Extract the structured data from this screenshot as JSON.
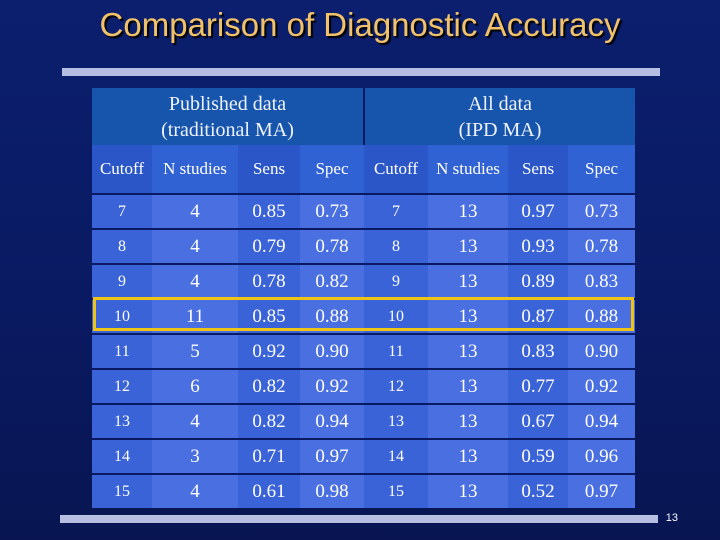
{
  "title": "Comparison of Diagnostic Accuracy",
  "page_number": "13",
  "groups": {
    "published_line1": "Published data",
    "published_line2": "(traditional MA)",
    "all_line1": "All data",
    "all_line2": "(IPD MA)"
  },
  "columns": [
    "Cutoff",
    "N studies",
    "Sens",
    "Spec",
    "Cutoff",
    "N studies",
    "Sens",
    "Spec"
  ],
  "rows": [
    [
      "7",
      "4",
      "0.85",
      "0.73",
      "7",
      "13",
      "0.97",
      "0.73"
    ],
    [
      "8",
      "4",
      "0.79",
      "0.78",
      "8",
      "13",
      "0.93",
      "0.78"
    ],
    [
      "9",
      "4",
      "0.78",
      "0.82",
      "9",
      "13",
      "0.89",
      "0.83"
    ],
    [
      "10",
      "11",
      "0.85",
      "0.88",
      "10",
      "13",
      "0.87",
      "0.88"
    ],
    [
      "11",
      "5",
      "0.92",
      "0.90",
      "11",
      "13",
      "0.83",
      "0.90"
    ],
    [
      "12",
      "6",
      "0.82",
      "0.92",
      "12",
      "13",
      "0.77",
      "0.92"
    ],
    [
      "13",
      "4",
      "0.82",
      "0.94",
      "13",
      "13",
      "0.67",
      "0.94"
    ],
    [
      "14",
      "3",
      "0.71",
      "0.97",
      "14",
      "13",
      "0.59",
      "0.96"
    ],
    [
      "15",
      "4",
      "0.61",
      "0.98",
      "15",
      "13",
      "0.52",
      "0.97"
    ]
  ],
  "highlighted_row": "10",
  "colors": {
    "title": "#f2c26b",
    "highlight": "#f0c414",
    "background": "#0b1f6e"
  }
}
